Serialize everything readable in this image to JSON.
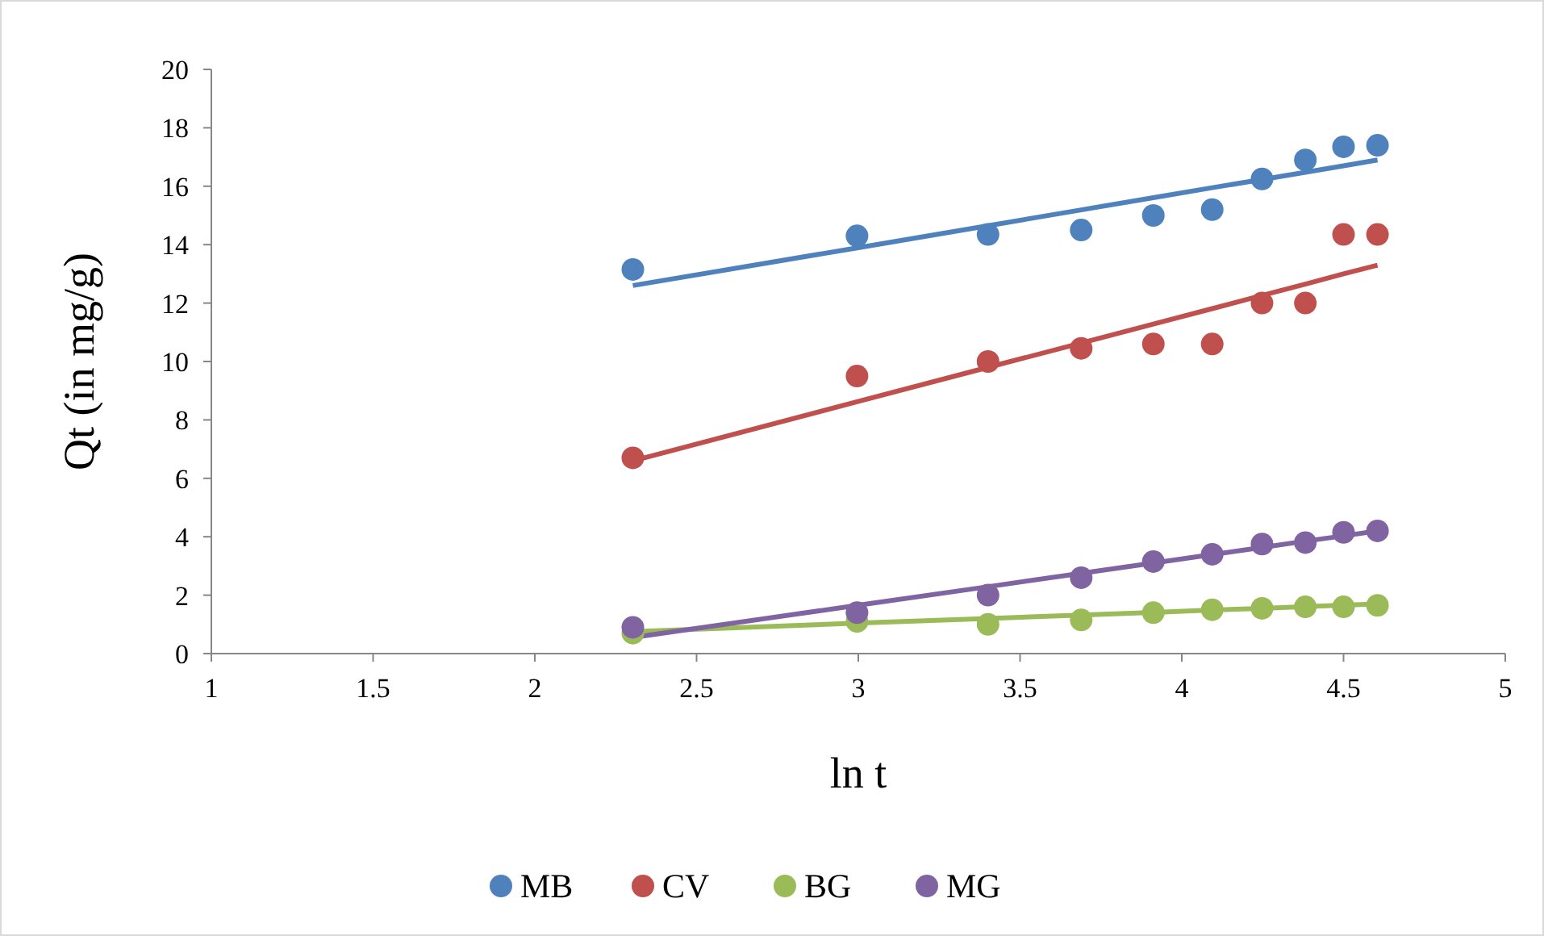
{
  "chart_data": {
    "type": "scatter",
    "xlabel": "ln t",
    "ylabel": "Qt (in mg/g)",
    "x": [
      2.303,
      2.996,
      3.401,
      3.689,
      3.912,
      4.094,
      4.248,
      4.382,
      4.5,
      4.605
    ],
    "xlim": [
      1,
      5
    ],
    "xticks": [
      1,
      1.5,
      2,
      2.5,
      3,
      3.5,
      4,
      4.5,
      5
    ],
    "ylim": [
      0,
      20
    ],
    "yticks": [
      0,
      2,
      4,
      6,
      8,
      10,
      12,
      14,
      16,
      18,
      20
    ],
    "grid": false,
    "legend": "bottom",
    "marker": "circle",
    "series": [
      {
        "name": "MB",
        "color": "#4f81bd",
        "values": [
          13.15,
          14.3,
          14.35,
          14.5,
          15.0,
          15.2,
          16.25,
          16.9,
          17.35,
          17.4
        ]
      },
      {
        "name": "CV",
        "color": "#c0504d",
        "values": [
          6.7,
          9.5,
          10.0,
          10.45,
          10.6,
          10.6,
          12.0,
          12.0,
          14.35,
          14.35
        ]
      },
      {
        "name": "BG",
        "color": "#9bbb59",
        "values": [
          0.7,
          1.1,
          1.0,
          1.15,
          1.4,
          1.5,
          1.55,
          1.6,
          1.6,
          1.65
        ]
      },
      {
        "name": "MG",
        "color": "#8064a2",
        "values": [
          0.9,
          1.4,
          2.0,
          2.6,
          3.15,
          3.4,
          3.75,
          3.8,
          4.15,
          4.2
        ]
      },
      {
        "type": "line",
        "marker": "none",
        "color": "#4f81bd",
        "values": [
          12.6,
          13.89,
          14.65,
          15.19,
          15.61,
          15.95,
          16.23,
          16.48,
          16.7,
          16.9
        ]
      },
      {
        "type": "line",
        "marker": "none",
        "color": "#c0504d",
        "values": [
          6.6,
          8.62,
          9.8,
          10.63,
          11.28,
          11.81,
          12.26,
          12.65,
          13.0,
          13.3
        ]
      },
      {
        "type": "line",
        "marker": "none",
        "color": "#9bbb59",
        "values": [
          0.75,
          1.04,
          1.2,
          1.32,
          1.41,
          1.49,
          1.55,
          1.61,
          1.66,
          1.7
        ]
      },
      {
        "type": "line",
        "marker": "none",
        "color": "#8064a2",
        "values": [
          0.55,
          1.65,
          2.29,
          2.75,
          3.1,
          3.39,
          3.63,
          3.85,
          4.03,
          4.2
        ]
      }
    ]
  }
}
